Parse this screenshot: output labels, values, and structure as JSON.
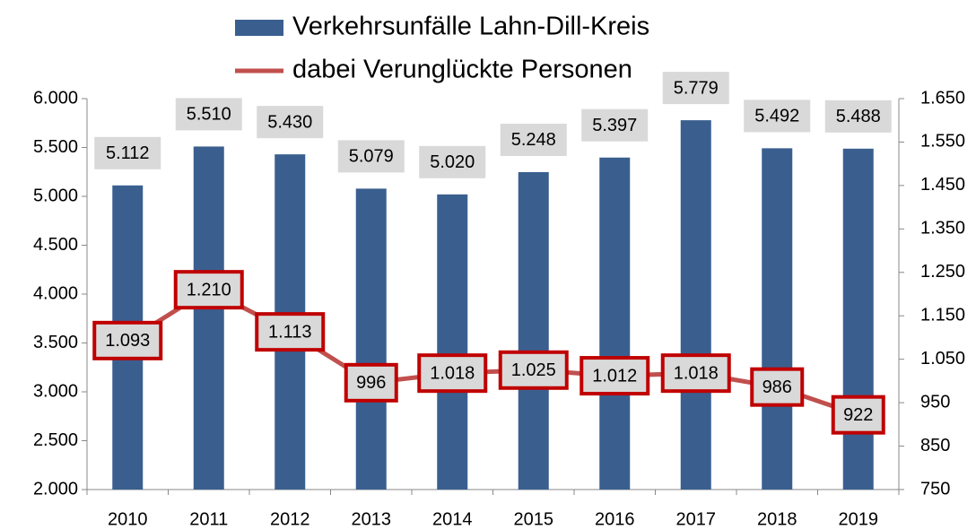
{
  "chart_data": {
    "type": "bar+line",
    "categories": [
      "2010",
      "2011",
      "2012",
      "2013",
      "2014",
      "2015",
      "2016",
      "2017",
      "2018",
      "2019"
    ],
    "series": [
      {
        "name": "Verkehrsunfälle Lahn-Dill-Kreis",
        "type": "bar",
        "color": "#3a5f8f",
        "values": [
          5112,
          5510,
          5430,
          5079,
          5020,
          5248,
          5397,
          5779,
          5492,
          5488
        ],
        "value_labels": [
          "5.112",
          "5.510",
          "5.430",
          "5.079",
          "5.020",
          "5.248",
          "5.397",
          "5.779",
          "5.492",
          "5.488"
        ]
      },
      {
        "name": "dabei Verunglückte Personen",
        "type": "line",
        "axis": "y2",
        "color": "#c0504d",
        "values": [
          1093,
          1210,
          1113,
          996,
          1018,
          1025,
          1012,
          1018,
          986,
          922
        ],
        "value_labels": [
          "1.093",
          "1.210",
          "1.113",
          "996",
          "1.018",
          "1.025",
          "1.012",
          "1.018",
          "986",
          "922"
        ]
      }
    ],
    "ylim": [
      2000,
      6000
    ],
    "yticks": [
      {
        "value": 2000,
        "label": "2.000"
      },
      {
        "value": 2500,
        "label": "2.500"
      },
      {
        "value": 3000,
        "label": "3.000"
      },
      {
        "value": 3500,
        "label": "3.500"
      },
      {
        "value": 4000,
        "label": "4.000"
      },
      {
        "value": 4500,
        "label": "4.500"
      },
      {
        "value": 5000,
        "label": "5.000"
      },
      {
        "value": 5500,
        "label": "5.500"
      },
      {
        "value": 6000,
        "label": "6.000"
      }
    ],
    "y2lim": [
      750,
      1650
    ],
    "y2ticks": [
      750,
      850,
      950,
      {
        "value": 1050,
        "label": "1.050"
      },
      {
        "value": 1150,
        "label": "1.150"
      },
      {
        "value": 1250,
        "label": "1.250"
      },
      {
        "value": 1350,
        "label": "1.350"
      },
      {
        "value": 1450,
        "label": "1.450"
      },
      {
        "value": 1550,
        "label": "1.550"
      },
      {
        "value": 1650,
        "label": "1.650"
      }
    ],
    "legend": "top",
    "grid": false
  }
}
